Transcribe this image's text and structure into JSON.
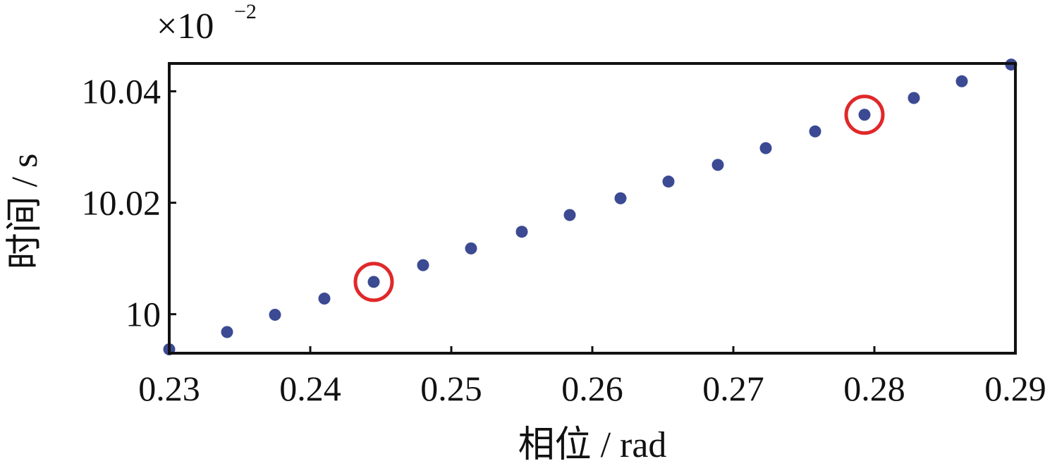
{
  "chart_data": {
    "type": "scatter",
    "title": "",
    "xlabel": "相位 / rad",
    "ylabel": "时间 / s",
    "y_scale_factor_label": "×10",
    "y_scale_factor_exponent": "−2",
    "xlim": [
      0.23,
      0.29
    ],
    "ylim": [
      9.993,
      10.045
    ],
    "x_ticks": [
      0.23,
      0.24,
      0.25,
      0.26,
      0.27,
      0.28,
      0.29
    ],
    "x_tick_labels": [
      "0.23",
      "0.24",
      "0.25",
      "0.26",
      "0.27",
      "0.28",
      "0.29"
    ],
    "y_ticks": [
      10.0,
      10.02,
      10.04
    ],
    "y_tick_labels": [
      "10",
      "10.02",
      "10.04"
    ],
    "grid": false,
    "legend": "none",
    "marker_color": "#3b4a92",
    "highlight_color": "#e0282a",
    "series": [
      {
        "x": [
          0.23,
          0.2341,
          0.2375,
          0.241,
          0.2445,
          0.248,
          0.2514,
          0.255,
          0.2584,
          0.262,
          0.2654,
          0.2689,
          0.2723,
          0.2758,
          0.2793,
          0.2828,
          0.2862,
          0.2897
        ],
        "y": [
          9.9937,
          9.9968,
          9.9999,
          10.0028,
          10.0058,
          10.0088,
          10.0118,
          10.0148,
          10.0178,
          10.0208,
          10.0238,
          10.0268,
          10.0298,
          10.0328,
          10.0358,
          10.0388,
          10.0418,
          10.0448
        ]
      }
    ],
    "highlighted_points": [
      {
        "x": 0.2445,
        "y": 10.0058
      },
      {
        "x": 0.2793,
        "y": 10.0358
      }
    ]
  }
}
